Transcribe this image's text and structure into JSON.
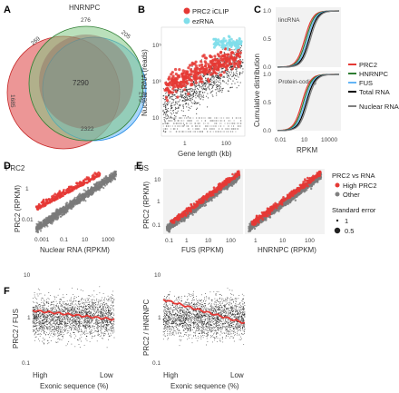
{
  "panels": {
    "A": {
      "label": "A",
      "venn": {
        "sets": [
          {
            "name": "HNRNPC",
            "color": "#4caf50"
          },
          {
            "name": "PRC2",
            "color": "#e57373"
          },
          {
            "name": "FUS",
            "color": "#64b5f6"
          }
        ],
        "regions": {
          "hnrnpc_only": "276",
          "hnrnpc_prc2": "269",
          "hnrnpc_fus": "205",
          "all_three": "7290",
          "prc2_only": "1685",
          "fus_only": "517",
          "prc2_fus": "2322"
        }
      }
    },
    "B": {
      "label": "B",
      "ylabel": "Nuclear RNA (reads)",
      "xlabel": "Gene length (kb)",
      "yticks": [
        "10",
        "10³",
        "10⁵"
      ],
      "xticks": [
        "1",
        "100"
      ],
      "legend": [
        {
          "label": "PRC2 iCLIP",
          "color": "#e53935"
        },
        {
          "label": "ezRNA",
          "color": "#80deea"
        }
      ]
    },
    "C": {
      "label": "C",
      "ylabel": "Cumulative distribution",
      "xlabel": "RPKM",
      "top_title": "lincRNA",
      "bottom_title": "Protein-coding",
      "yticks_top": [
        "1.0",
        "0.5",
        "0.0"
      ],
      "yticks_bottom": [
        "1.0",
        "0.5",
        "0.0"
      ],
      "xticks": [
        "0.01",
        "10",
        "10000"
      ],
      "legend": [
        {
          "label": "PRC2",
          "color": "#e53935"
        },
        {
          "label": "HNRNPC",
          "color": "#2e7d32"
        },
        {
          "label": "FUS",
          "color": "#64b5f6"
        },
        {
          "label": "Total RNA",
          "color": "#000000"
        },
        {
          "label": "Nuclear RNA",
          "color": "#808080"
        }
      ]
    },
    "D": {
      "label": "D",
      "ylabel": "PRC2 (RPKM)",
      "xlabel": "Nuclear RNA (RPKM)",
      "xticks": [
        "0.001",
        "0.1",
        "10",
        "1000"
      ],
      "yticks": [
        "1",
        "0.01"
      ]
    },
    "E": {
      "label": "E",
      "ylabel": "PRC2 (RPKM)",
      "left_xlabel": "FUS (RPKM)",
      "right_xlabel": "HNRNPC (RPKM)",
      "left_xticks": [
        "0.1",
        "1",
        "10",
        "100"
      ],
      "right_xticks": [
        "1",
        "10",
        "100"
      ],
      "yticks": [
        "10",
        "1",
        "0.1"
      ],
      "legend_title": "PRC2 vs RNA",
      "legend": [
        {
          "label": "High PRC2",
          "color": "#e53935"
        },
        {
          "label": "Other",
          "color": "#808080"
        }
      ],
      "size_title": "Standard error",
      "size_legend": [
        "1",
        "0.5"
      ]
    },
    "F": {
      "label": "F",
      "left_ylabel": "PRC2 / FUS",
      "right_ylabel": "PRC2 / HNRNPC",
      "xlabel": "Exonic sequence (%)",
      "xticks": [
        "High",
        "Low"
      ],
      "yticks": [
        "10",
        "1",
        "0.1"
      ]
    }
  },
  "colors": {
    "red": "#e53935",
    "grey": "#7a7a7a",
    "cyan": "#80deea"
  }
}
